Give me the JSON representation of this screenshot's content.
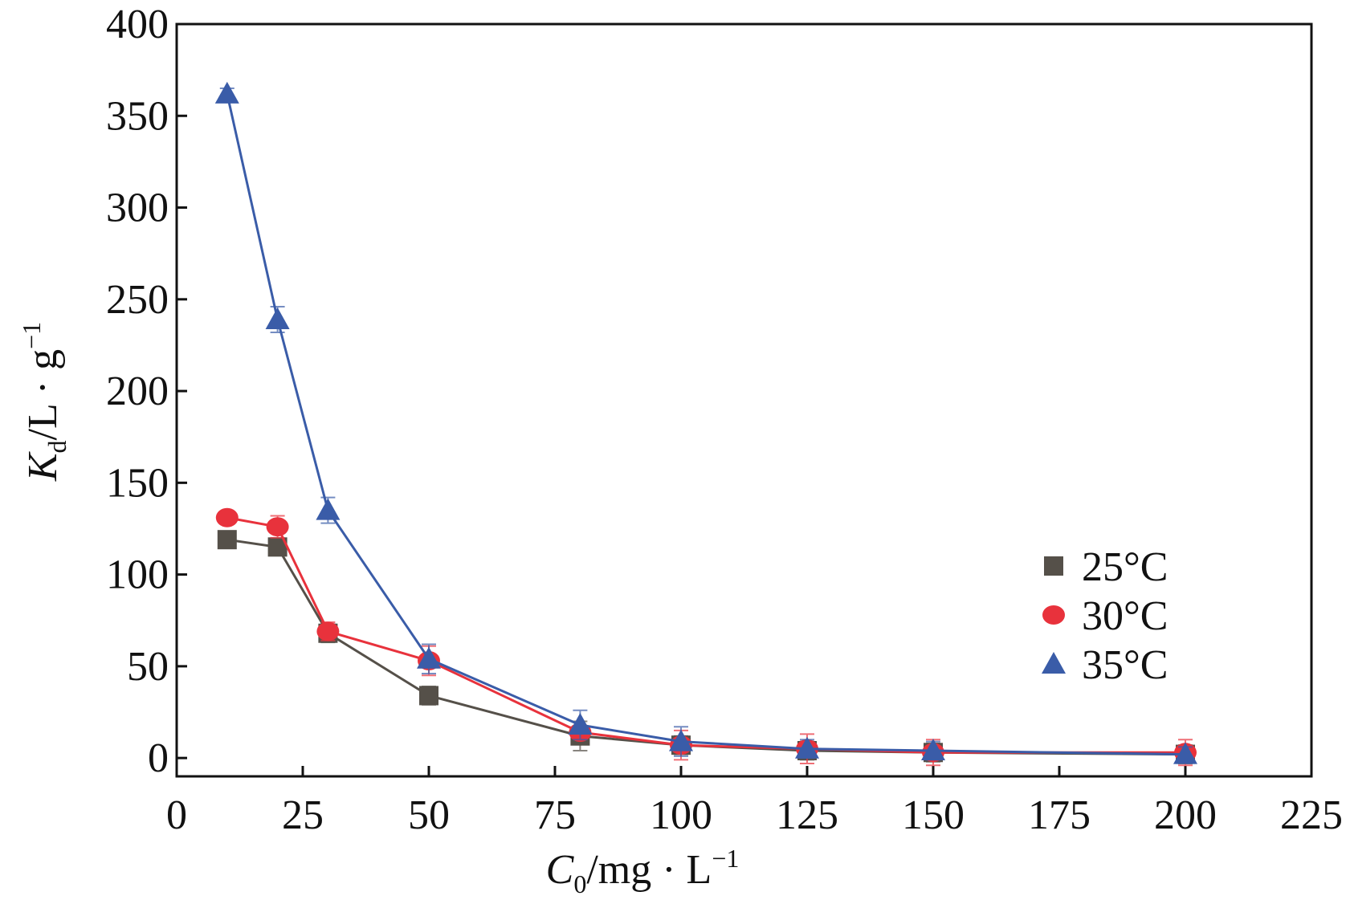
{
  "chart_data": {
    "type": "line",
    "xlabel": {
      "symbol": "C",
      "subscript": "0",
      "unit": "/mg · L",
      "superscript": "−1"
    },
    "ylabel": {
      "symbol": "K",
      "subscript": "d",
      "unit": "/L · g",
      "superscript": "−1"
    },
    "x": [
      10,
      20,
      30,
      50,
      80,
      100,
      125,
      150,
      200
    ],
    "series": [
      {
        "name": "25°C",
        "color": "#555049",
        "marker": "square",
        "values": [
          119,
          115,
          68,
          34,
          12,
          7,
          4,
          3,
          2
        ],
        "errors": [
          2,
          3,
          5,
          5,
          8,
          5,
          5,
          5,
          5
        ]
      },
      {
        "name": "30°C",
        "color": "#e8323c",
        "marker": "circle",
        "values": [
          131,
          126,
          69,
          53,
          14,
          7,
          5,
          3,
          3
        ],
        "errors": [
          3,
          6,
          5,
          8,
          3,
          8,
          8,
          7,
          7
        ]
      },
      {
        "name": "35°C",
        "color": "#3a5ca8",
        "marker": "triangle",
        "values": [
          362,
          239,
          135,
          54,
          18,
          9,
          5,
          4,
          2
        ],
        "errors": [
          3,
          7,
          7,
          8,
          8,
          8,
          5,
          5,
          4
        ]
      }
    ],
    "xlim": [
      0,
      225
    ],
    "xticks": [
      0,
      25,
      50,
      75,
      100,
      125,
      150,
      175,
      200,
      225
    ],
    "ylim": [
      -10,
      400
    ],
    "yticks": [
      0,
      50,
      100,
      150,
      200,
      250,
      300,
      350,
      400
    ],
    "legend": "right"
  }
}
